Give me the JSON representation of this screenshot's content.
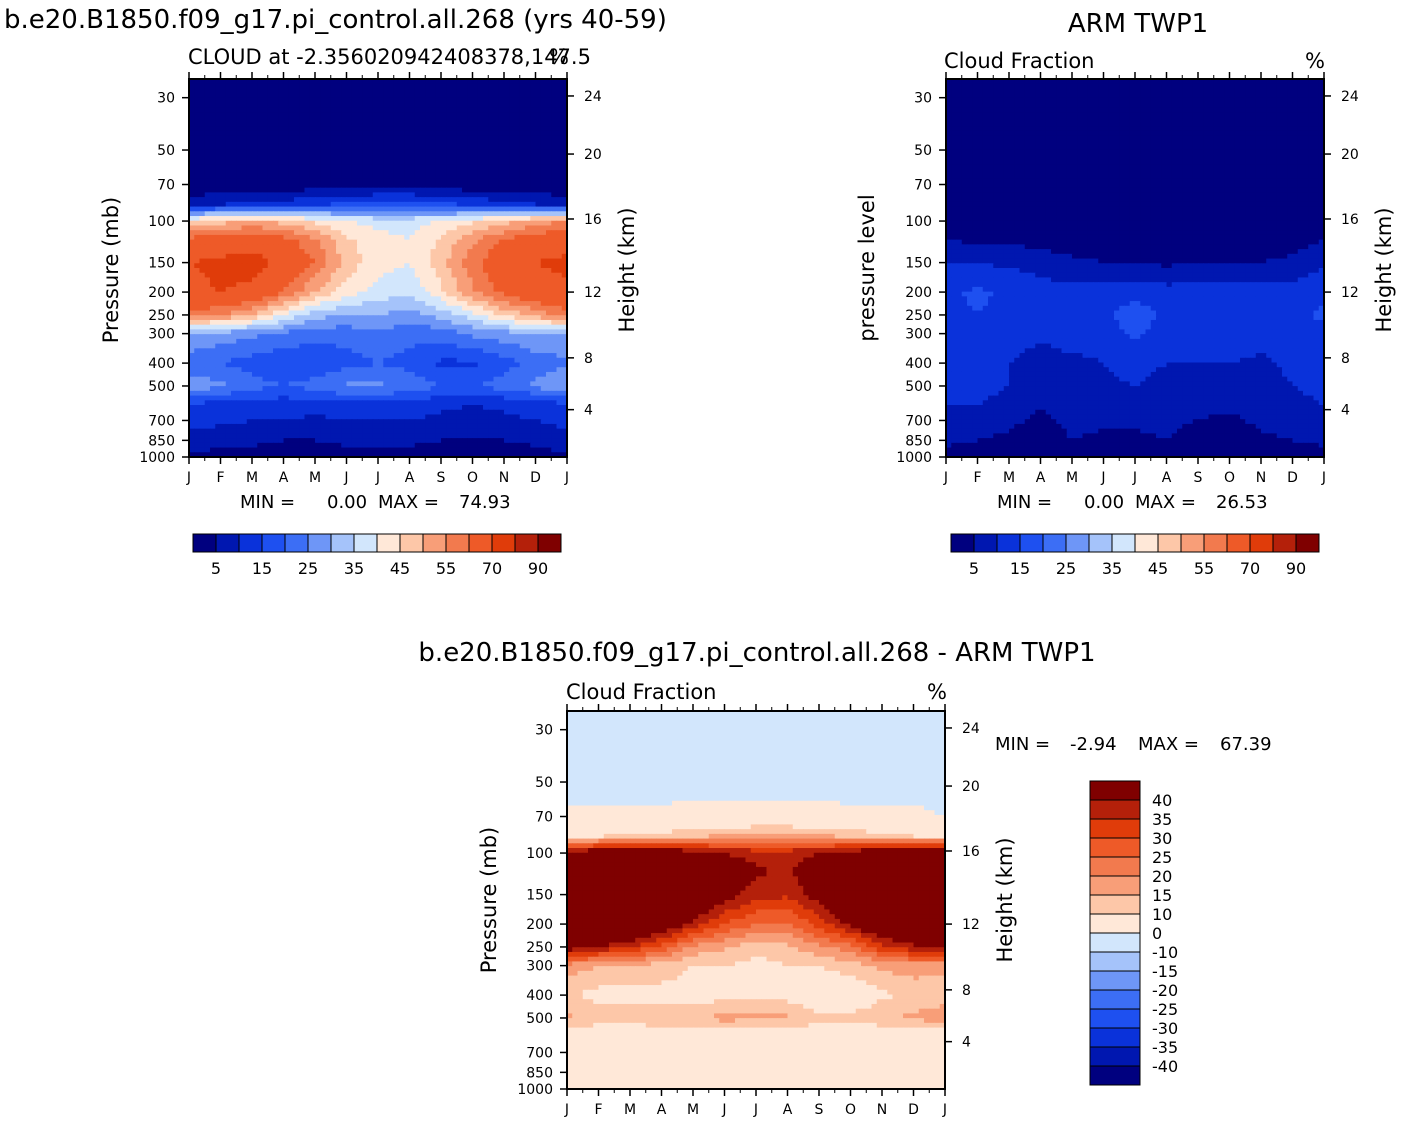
{
  "figure": {
    "panel1_title": "b.e20.B1850.f09_g17.pi_control.all.268 (yrs 40-59)",
    "panel2_title": "ARM TWP1",
    "panel3_title": "b.e20.B1850.f09_g17.pi_control.all.268 - ARM TWP1"
  },
  "colors": {
    "scale": [
      "#00007F",
      "#0017B0",
      "#0A32DA",
      "#1E50F0",
      "#3C6EF5",
      "#6E96F7",
      "#A5C3FA",
      "#D2E6FC",
      "#FFE8D8",
      "#FDC7A8",
      "#F89E78",
      "#F27A4E",
      "#EE5A28",
      "#E03C0A",
      "#B4200A",
      "#7F0000"
    ]
  },
  "chart_data": [
    {
      "type": "heatmap",
      "panel": "model",
      "subtitle": "CLOUD at -2.356020942408378,147.5",
      "units": "%",
      "ylabel": "Pressure (mb)",
      "ylabel_right": "Height (km)",
      "x_ticks": [
        "J",
        "F",
        "M",
        "A",
        "M",
        "J",
        "J",
        "A",
        "S",
        "O",
        "N",
        "D",
        "J"
      ],
      "y_ticks": [
        30,
        50,
        70,
        100,
        150,
        200,
        250,
        300,
        400,
        500,
        700,
        850,
        1000
      ],
      "y_ticks_right": [
        24,
        20,
        16,
        12,
        8,
        4
      ],
      "y_log": true,
      "min_label": "MIN =",
      "min_value": "0.00",
      "max_label": "MAX =",
      "max_value": "74.93",
      "colorbar_labels": [
        "5",
        "15",
        "25",
        "35",
        "45",
        "55",
        "70",
        "90"
      ],
      "profile_levels": [
        30,
        50,
        70,
        85,
        100,
        120,
        150,
        200,
        250,
        300,
        400,
        500,
        600,
        700,
        850,
        1000
      ],
      "profiles": [
        [
          0,
          0,
          0,
          8,
          45,
          62,
          70,
          68,
          58,
          30,
          22,
          28,
          14,
          12,
          8,
          4
        ],
        [
          0,
          0,
          1,
          10,
          48,
          64,
          72,
          70,
          55,
          28,
          20,
          26,
          13,
          11,
          7,
          3
        ],
        [
          0,
          0,
          1,
          11,
          50,
          66,
          74,
          68,
          50,
          26,
          18,
          22,
          12,
          10,
          6,
          3
        ],
        [
          0,
          0,
          1,
          12,
          48,
          62,
          68,
          60,
          40,
          24,
          16,
          20,
          12,
          10,
          5,
          3
        ],
        [
          0,
          0,
          2,
          14,
          44,
          56,
          60,
          50,
          32,
          22,
          16,
          22,
          12,
          9,
          5,
          3
        ],
        [
          0,
          0,
          2,
          16,
          40,
          46,
          48,
          42,
          30,
          22,
          18,
          26,
          13,
          10,
          6,
          3
        ],
        [
          0,
          0,
          2,
          18,
          38,
          42,
          42,
          38,
          30,
          24,
          20,
          26,
          12,
          10,
          6,
          3
        ],
        [
          0,
          0,
          2,
          18,
          38,
          40,
          40,
          36,
          28,
          22,
          18,
          24,
          12,
          10,
          6,
          3
        ],
        [
          0,
          0,
          2,
          16,
          40,
          46,
          48,
          44,
          32,
          22,
          14,
          20,
          11,
          9,
          5,
          3
        ],
        [
          0,
          0,
          1,
          14,
          44,
          54,
          58,
          54,
          38,
          26,
          14,
          20,
          10,
          8,
          4,
          2
        ],
        [
          0,
          0,
          1,
          12,
          48,
          60,
          66,
          62,
          46,
          28,
          18,
          22,
          11,
          9,
          5,
          3
        ],
        [
          0,
          0,
          1,
          10,
          52,
          64,
          70,
          66,
          52,
          30,
          22,
          26,
          12,
          10,
          6,
          3
        ],
        [
          0,
          0,
          0,
          8,
          55,
          66,
          72,
          68,
          58,
          30,
          24,
          30,
          14,
          12,
          8,
          4
        ]
      ]
    },
    {
      "type": "heatmap",
      "panel": "obs",
      "subtitle": "Cloud Fraction",
      "units": "%",
      "ylabel": "pressure level",
      "ylabel_right": "Height (km)",
      "x_ticks": [
        "J",
        "F",
        "M",
        "A",
        "M",
        "J",
        "J",
        "A",
        "S",
        "O",
        "N",
        "D",
        "J"
      ],
      "y_ticks": [
        30,
        50,
        70,
        100,
        150,
        200,
        250,
        300,
        400,
        500,
        700,
        850,
        1000
      ],
      "y_ticks_right": [
        24,
        20,
        16,
        12,
        8,
        4
      ],
      "y_log": true,
      "min_label": "MIN =",
      "min_value": "0.00",
      "max_label": "MAX =",
      "max_value": "26.53",
      "colorbar_labels": [
        "5",
        "15",
        "25",
        "35",
        "45",
        "55",
        "70",
        "90"
      ],
      "profile_levels": [
        30,
        50,
        70,
        85,
        100,
        120,
        150,
        200,
        250,
        300,
        400,
        500,
        600,
        700,
        850,
        1000
      ],
      "profiles": [
        [
          0,
          0,
          0,
          0,
          1,
          5,
          10,
          14,
          13,
          12,
          11,
          12,
          10,
          8,
          6,
          3
        ],
        [
          0,
          0,
          0,
          0,
          1,
          4,
          10,
          16,
          15,
          13,
          12,
          12,
          10,
          8,
          5,
          3
        ],
        [
          0,
          0,
          0,
          0,
          1,
          4,
          9,
          14,
          14,
          12,
          10,
          10,
          8,
          6,
          4,
          2
        ],
        [
          0,
          0,
          0,
          0,
          0,
          3,
          8,
          12,
          12,
          11,
          8,
          6,
          5,
          4,
          3,
          2
        ],
        [
          0,
          0,
          0,
          0,
          0,
          2,
          6,
          12,
          13,
          12,
          9,
          8,
          8,
          6,
          5,
          3
        ],
        [
          0,
          0,
          0,
          0,
          0,
          2,
          5,
          12,
          14,
          12,
          10,
          9,
          8,
          6,
          4,
          2
        ],
        [
          0,
          0,
          0,
          0,
          0,
          1,
          5,
          13,
          18,
          16,
          12,
          10,
          8,
          6,
          4,
          2
        ],
        [
          0,
          0,
          0,
          0,
          0,
          1,
          4,
          12,
          14,
          12,
          10,
          8,
          7,
          6,
          5,
          3
        ],
        [
          0,
          0,
          0,
          0,
          0,
          1,
          5,
          12,
          13,
          12,
          10,
          8,
          6,
          5,
          3,
          2
        ],
        [
          0,
          0,
          0,
          0,
          0,
          1,
          5,
          12,
          15,
          13,
          10,
          8,
          6,
          4,
          3,
          2
        ],
        [
          0,
          0,
          0,
          0,
          0,
          2,
          5,
          12,
          12,
          12,
          9,
          8,
          7,
          6,
          4,
          2
        ],
        [
          0,
          0,
          0,
          0,
          0,
          3,
          6,
          12,
          13,
          12,
          11,
          10,
          9,
          7,
          5,
          3
        ],
        [
          0,
          0,
          0,
          0,
          1,
          5,
          9,
          14,
          16,
          14,
          12,
          11,
          10,
          8,
          6,
          3
        ]
      ]
    },
    {
      "type": "heatmap",
      "panel": "difference",
      "subtitle": "Cloud Fraction",
      "units": "%",
      "ylabel": "Pressure (mb)",
      "ylabel_right": "Height (km)",
      "x_ticks": [
        "J",
        "F",
        "M",
        "A",
        "M",
        "J",
        "J",
        "A",
        "S",
        "O",
        "N",
        "D",
        "J"
      ],
      "y_ticks": [
        30,
        50,
        70,
        100,
        150,
        200,
        250,
        300,
        400,
        500,
        700,
        850,
        1000
      ],
      "y_ticks_right": [
        24,
        20,
        16,
        12,
        8,
        4
      ],
      "y_log": true,
      "min_label": "MIN =",
      "min_value": "-2.94",
      "max_label": "MAX =",
      "max_value": "67.39",
      "colorbar_labels": [
        "40",
        "35",
        "30",
        "25",
        "20",
        "15",
        "10",
        "0",
        "-10",
        "-15",
        "-20",
        "-25",
        "-30",
        "-35",
        "-40"
      ],
      "profile_levels": [
        30,
        50,
        70,
        85,
        100,
        120,
        150,
        200,
        250,
        300,
        400,
        500,
        600,
        700,
        850,
        1000
      ],
      "profiles": [
        [
          -2,
          -2,
          1,
          8,
          44,
          57,
          60,
          54,
          45,
          18,
          11,
          16,
          4,
          4,
          2,
          1
        ],
        [
          -2,
          -2,
          1,
          10,
          47,
          60,
          62,
          54,
          40,
          15,
          8,
          14,
          3,
          3,
          2,
          1
        ],
        [
          -2,
          -2,
          1,
          11,
          49,
          62,
          65,
          54,
          36,
          14,
          8,
          12,
          4,
          4,
          2,
          1
        ],
        [
          -2,
          -2,
          1,
          12,
          48,
          59,
          60,
          48,
          28,
          13,
          8,
          14,
          7,
          6,
          2,
          1
        ],
        [
          -2,
          -2,
          2,
          14,
          44,
          54,
          54,
          38,
          19,
          10,
          7,
          14,
          4,
          3,
          0,
          1
        ],
        [
          -2,
          -2,
          2,
          16,
          40,
          44,
          43,
          30,
          16,
          10,
          8,
          17,
          5,
          4,
          2,
          1
        ],
        [
          -2,
          -2,
          2,
          18,
          38,
          41,
          37,
          25,
          12,
          8,
          8,
          16,
          4,
          4,
          2,
          1
        ],
        [
          -2,
          -2,
          2,
          18,
          38,
          39,
          36,
          24,
          14,
          10,
          8,
          16,
          5,
          4,
          1,
          0
        ],
        [
          -2,
          -2,
          2,
          16,
          40,
          45,
          43,
          32,
          19,
          10,
          4,
          12,
          5,
          4,
          2,
          1
        ],
        [
          -2,
          -2,
          1,
          14,
          44,
          53,
          53,
          42,
          23,
          13,
          4,
          12,
          4,
          4,
          1,
          0
        ],
        [
          -2,
          -2,
          1,
          12,
          48,
          58,
          61,
          50,
          34,
          16,
          9,
          14,
          4,
          3,
          1,
          1
        ],
        [
          -2,
          -2,
          1,
          10,
          52,
          61,
          64,
          52,
          39,
          18,
          11,
          16,
          3,
          3,
          1,
          0
        ],
        [
          -2,
          -2,
          0,
          8,
          54,
          61,
          63,
          54,
          42,
          16,
          12,
          19,
          4,
          4,
          2,
          1
        ]
      ]
    }
  ]
}
